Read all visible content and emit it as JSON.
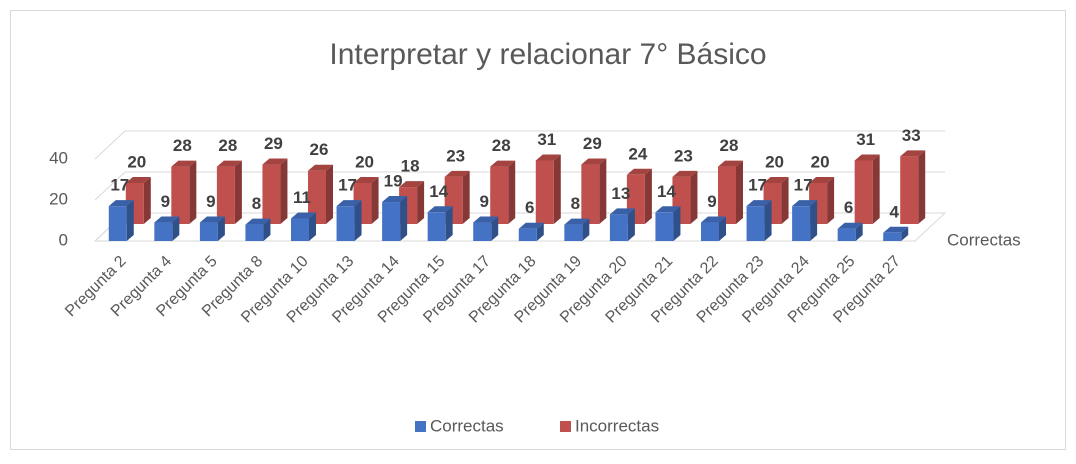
{
  "chart_data": {
    "type": "bar3d",
    "title": "Interpretar y relacionar 7° Básico",
    "categories": [
      "Pregunta 2",
      "Pregunta 4",
      "Pregunta 5",
      "Pregunta 8",
      "Pregunta 10",
      "Pregunta 13",
      "Pregunta 14",
      "Pregunta 15",
      "Pregunta 17",
      "Pregunta 18",
      "Pregunta 19",
      "Pregunta 20",
      "Pregunta 21",
      "Pregunta 22",
      "Pregunta 23",
      "Pregunta 24",
      "Pregunta 25",
      "Pregunta 27"
    ],
    "series": [
      {
        "name": "Correctas",
        "color": "#4472c4",
        "values": [
          17,
          9,
          9,
          8,
          11,
          17,
          19,
          14,
          9,
          6,
          8,
          13,
          14,
          9,
          17,
          17,
          6,
          4
        ]
      },
      {
        "name": "Incorrectas",
        "color": "#c0504d",
        "values": [
          20,
          28,
          28,
          29,
          26,
          20,
          18,
          23,
          28,
          31,
          29,
          24,
          23,
          28,
          20,
          20,
          31,
          33
        ]
      }
    ],
    "ylim": [
      0,
      40
    ],
    "yticks": [
      0,
      20,
      40
    ],
    "grid": true,
    "legend": "bottom"
  }
}
